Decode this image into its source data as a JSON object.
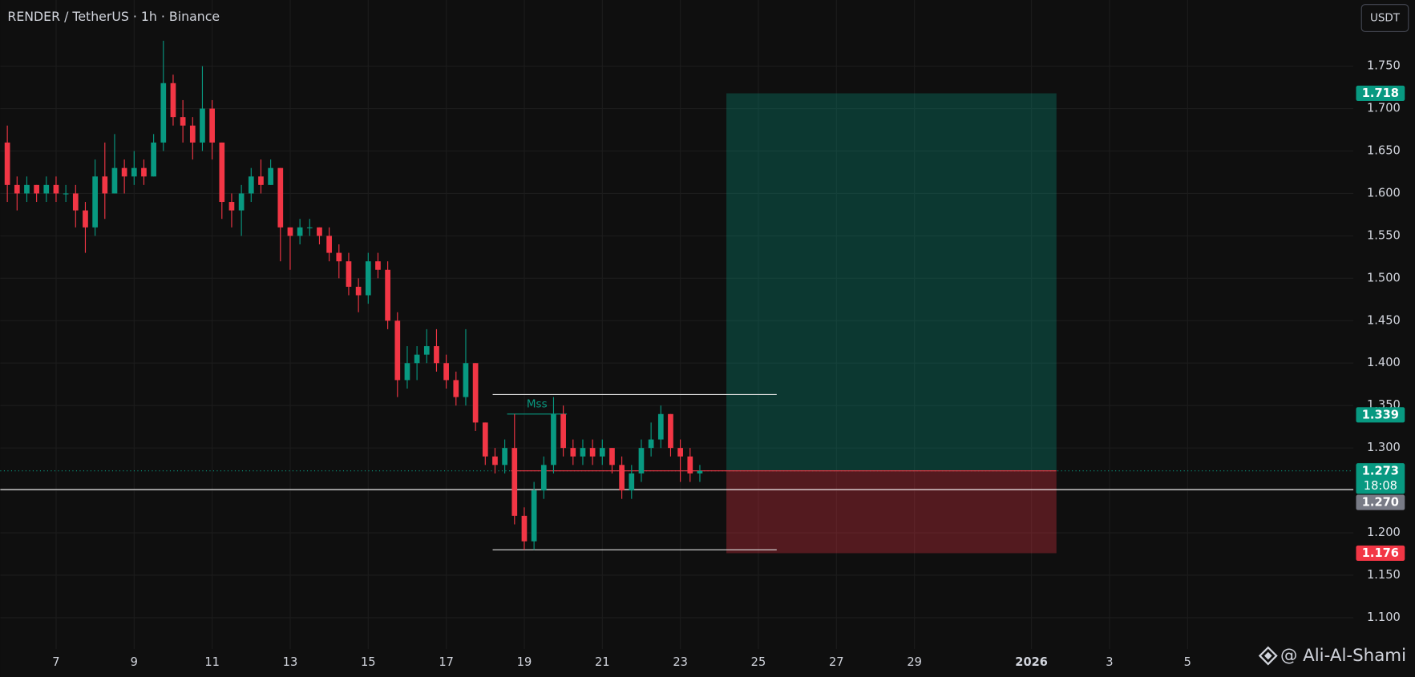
{
  "chart_data": {
    "type": "candlestick",
    "title": "RENDER / TetherUS · 1h · Binance",
    "currency": "USDT",
    "watermark": "@ Ali-Al-Shami",
    "colors": {
      "up": "#089981",
      "down": "#f23645"
    },
    "xlim": [
      5.57,
      40.25
    ],
    "ylim": [
      1.063,
      1.828
    ],
    "grid": true,
    "xticks": [
      7,
      9,
      11,
      13,
      15,
      17,
      19,
      21,
      23,
      25,
      27,
      29,
      {
        "value": 32,
        "label": "2026"
      },
      {
        "value": 34,
        "label": "3"
      },
      {
        "value": 36,
        "label": "5"
      }
    ],
    "yticks": [
      {
        "value": 1.1,
        "label": "1.100"
      },
      {
        "value": 1.15,
        "label": "1.150"
      },
      {
        "value": 1.2,
        "label": "1.200"
      },
      {
        "value": 1.25,
        "label": "1.250"
      },
      {
        "value": 1.3,
        "label": "1.300"
      },
      {
        "value": 1.35,
        "label": "1.350"
      },
      {
        "value": 1.4,
        "label": "1.400"
      },
      {
        "value": 1.45,
        "label": "1.450"
      },
      {
        "value": 1.5,
        "label": "1.500"
      },
      {
        "value": 1.55,
        "label": "1.550"
      },
      {
        "value": 1.6,
        "label": "1.600"
      },
      {
        "value": 1.65,
        "label": "1.650"
      },
      {
        "value": 1.7,
        "label": "1.700"
      },
      {
        "value": 1.75,
        "label": "1.750"
      }
    ],
    "candles": {
      "x": [
        5.75,
        6,
        6.25,
        6.5,
        6.75,
        7,
        7.25,
        7.5,
        7.75,
        8,
        8.25,
        8.5,
        8.75,
        9,
        9.25,
        9.5,
        9.75,
        10,
        10.25,
        10.5,
        10.75,
        11,
        11.25,
        11.5,
        11.75,
        12,
        12.25,
        12.5,
        12.75,
        13,
        13.25,
        13.5,
        13.75,
        14,
        14.25,
        14.5,
        14.75,
        15,
        15.25,
        15.5,
        15.75,
        16,
        16.25,
        16.5,
        16.75,
        17,
        17.25,
        17.5,
        17.75,
        18,
        18.25,
        18.5,
        18.75,
        19,
        19.25,
        19.5,
        19.75,
        20,
        20.25,
        20.5,
        20.75,
        21,
        21.25,
        21.5,
        21.75,
        22,
        22.25,
        22.5,
        22.75,
        23,
        23.25,
        23.5
      ],
      "open": [
        1.66,
        1.61,
        1.6,
        1.61,
        1.6,
        1.61,
        1.6,
        1.6,
        1.58,
        1.56,
        1.62,
        1.6,
        1.63,
        1.62,
        1.63,
        1.62,
        1.66,
        1.73,
        1.69,
        1.68,
        1.66,
        1.7,
        1.66,
        1.59,
        1.58,
        1.6,
        1.62,
        1.61,
        1.63,
        1.56,
        1.55,
        1.56,
        1.56,
        1.55,
        1.53,
        1.52,
        1.49,
        1.48,
        1.52,
        1.51,
        1.45,
        1.38,
        1.4,
        1.41,
        1.42,
        1.4,
        1.38,
        1.36,
        1.4,
        1.33,
        1.29,
        1.28,
        1.3,
        1.22,
        1.19,
        1.25,
        1.28,
        1.34,
        1.3,
        1.29,
        1.3,
        1.29,
        1.3,
        1.28,
        1.25,
        1.27,
        1.3,
        1.31,
        1.34,
        1.3,
        1.29,
        1.27
      ],
      "high": [
        1.68,
        1.62,
        1.62,
        1.61,
        1.62,
        1.62,
        1.61,
        1.61,
        1.59,
        1.64,
        1.66,
        1.67,
        1.64,
        1.65,
        1.64,
        1.67,
        1.78,
        1.74,
        1.71,
        1.69,
        1.75,
        1.71,
        1.66,
        1.6,
        1.61,
        1.63,
        1.64,
        1.64,
        1.63,
        1.56,
        1.57,
        1.57,
        1.56,
        1.56,
        1.54,
        1.53,
        1.5,
        1.53,
        1.53,
        1.52,
        1.46,
        1.42,
        1.42,
        1.44,
        1.44,
        1.41,
        1.39,
        1.44,
        1.4,
        1.33,
        1.3,
        1.31,
        1.34,
        1.23,
        1.26,
        1.29,
        1.36,
        1.35,
        1.31,
        1.31,
        1.31,
        1.31,
        1.3,
        1.29,
        1.28,
        1.31,
        1.33,
        1.35,
        1.34,
        1.31,
        1.3,
        1.28
      ],
      "low": [
        1.59,
        1.58,
        1.59,
        1.59,
        1.59,
        1.59,
        1.59,
        1.56,
        1.53,
        1.55,
        1.57,
        1.6,
        1.6,
        1.61,
        1.61,
        1.62,
        1.65,
        1.68,
        1.66,
        1.64,
        1.65,
        1.64,
        1.57,
        1.56,
        1.55,
        1.59,
        1.6,
        1.61,
        1.52,
        1.51,
        1.54,
        1.55,
        1.54,
        1.52,
        1.5,
        1.48,
        1.46,
        1.47,
        1.5,
        1.44,
        1.36,
        1.37,
        1.38,
        1.4,
        1.39,
        1.37,
        1.35,
        1.35,
        1.32,
        1.28,
        1.27,
        1.27,
        1.21,
        1.18,
        1.18,
        1.24,
        1.27,
        1.29,
        1.28,
        1.28,
        1.28,
        1.28,
        1.27,
        1.24,
        1.24,
        1.26,
        1.29,
        1.3,
        1.29,
        1.26,
        1.26,
        1.26
      ],
      "close": [
        1.61,
        1.6,
        1.61,
        1.6,
        1.61,
        1.6,
        1.6,
        1.58,
        1.56,
        1.62,
        1.6,
        1.63,
        1.62,
        1.63,
        1.62,
        1.66,
        1.73,
        1.69,
        1.68,
        1.66,
        1.7,
        1.66,
        1.59,
        1.58,
        1.6,
        1.62,
        1.61,
        1.63,
        1.56,
        1.55,
        1.56,
        1.56,
        1.55,
        1.53,
        1.52,
        1.49,
        1.48,
        1.52,
        1.51,
        1.45,
        1.38,
        1.4,
        1.41,
        1.42,
        1.4,
        1.38,
        1.36,
        1.4,
        1.33,
        1.29,
        1.28,
        1.3,
        1.22,
        1.19,
        1.25,
        1.28,
        1.34,
        1.3,
        1.29,
        1.3,
        1.29,
        1.3,
        1.28,
        1.25,
        1.27,
        1.3,
        1.31,
        1.34,
        1.3,
        1.29,
        1.27,
        1.273
      ]
    },
    "position": {
      "x": [
        24.18,
        32.64
      ],
      "entry": 1.273,
      "target": 1.718,
      "stop": 1.176
    },
    "range_lines": [
      {
        "x": [
          18.19,
          25.47
        ],
        "value": 1.363
      },
      {
        "x": [
          18.19,
          25.47
        ],
        "value": 1.18
      }
    ],
    "mss": {
      "label": "Mss",
      "x": [
        18.56,
        20.09
      ],
      "value": 1.34
    },
    "crosshair": 1.251,
    "price_markers": [
      {
        "value": 1.718,
        "label": "1.718",
        "color": "#089981"
      },
      {
        "value": 1.339,
        "label": "1.339",
        "color": "#089981"
      },
      {
        "value": 1.273,
        "label": "1.273",
        "color": "#089981",
        "countdown": "18:08"
      },
      {
        "value": 1.27,
        "label": "1.270",
        "color": "#787b86"
      },
      {
        "value": 1.176,
        "label": "1.176",
        "color": "#f23645"
      }
    ]
  }
}
